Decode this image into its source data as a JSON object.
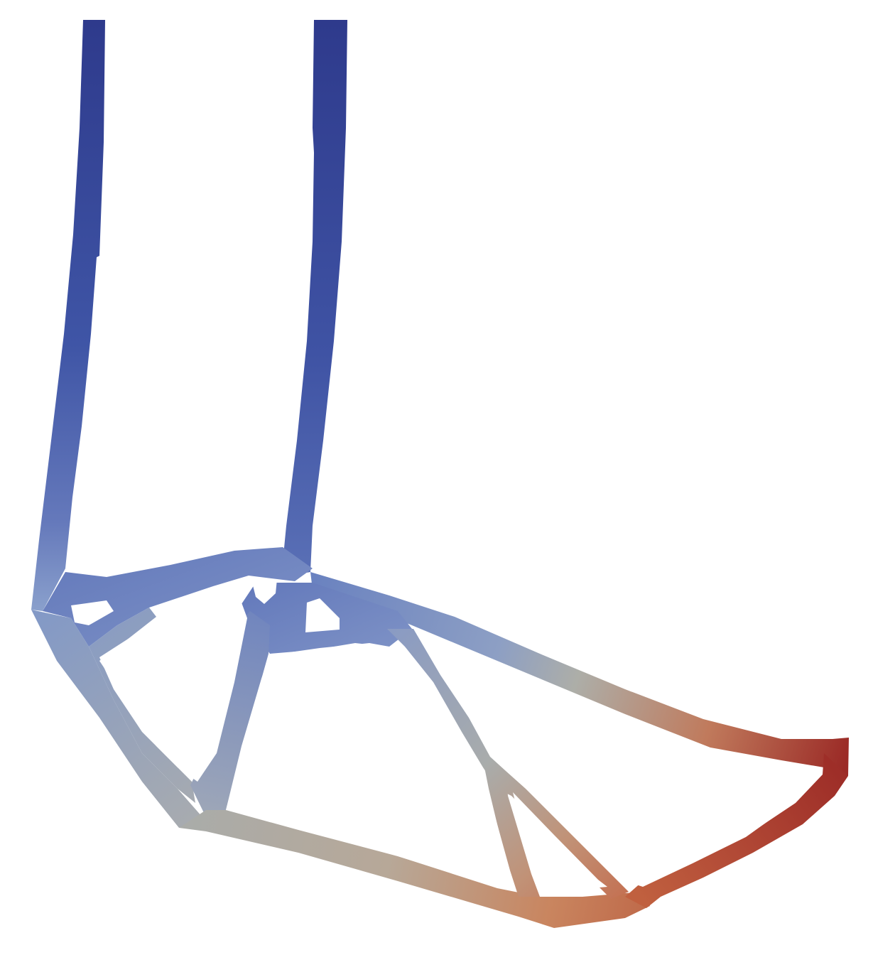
{
  "figure": {
    "description_colors": {
      "background": "#ffffff",
      "cold": "#2e3a8c",
      "mid_blue": "#7f97c9",
      "neutral": "#aeb0aa",
      "warm": "#c98360",
      "hot": "#9b2a26"
    },
    "colormap": "coolwarm",
    "members": 18
  }
}
